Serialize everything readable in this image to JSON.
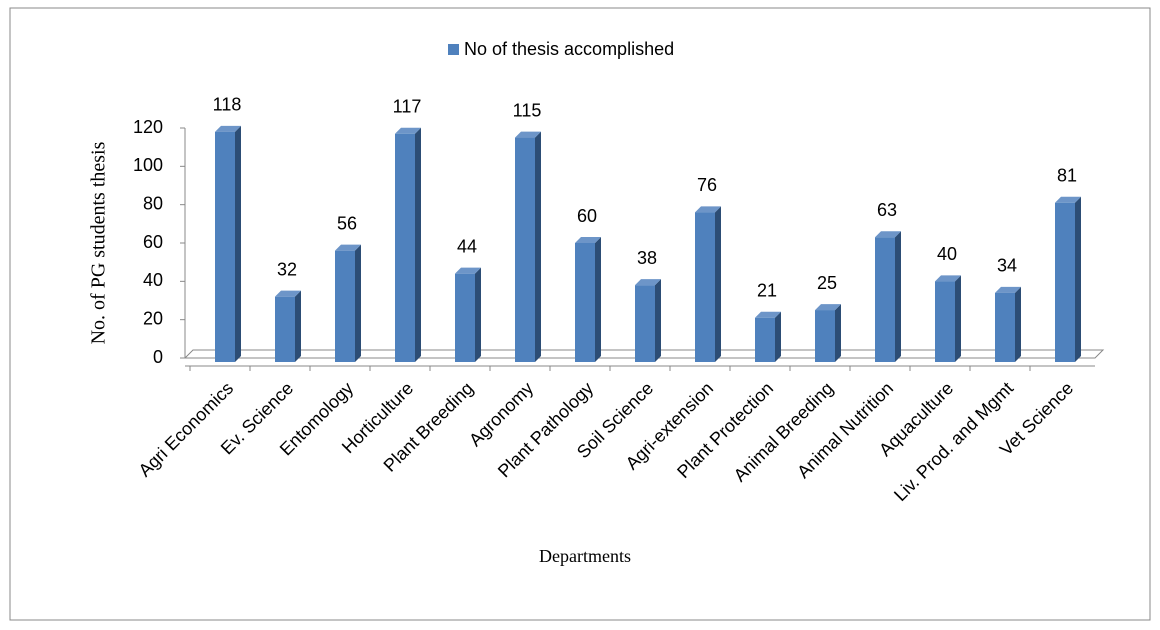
{
  "chart_data": {
    "type": "bar",
    "x_label": "Departments",
    "y_label": "No. of PG students thesis",
    "categories": [
      "Agri Economics",
      "Ev. Science",
      "Entomology",
      "Horticulture",
      "Plant Breeding",
      "Agronomy",
      "Plant Pathology",
      "Soil Science",
      "Agri-extension",
      "Plant Protection",
      "Animal Breeding",
      "Animal Nutrition",
      "Aquaculture",
      "Liv. Prod. and Mgmt",
      "Vet Science"
    ],
    "series": [
      {
        "name": "No of thesis accomplished",
        "color": "#4f81bd",
        "values": [
          118,
          32,
          56,
          117,
          44,
          115,
          60,
          38,
          76,
          21,
          25,
          63,
          40,
          34,
          81
        ]
      }
    ],
    "ylim": [
      0,
      120
    ],
    "yticks": [
      0,
      20,
      40,
      60,
      80,
      100,
      120
    ],
    "grid": false,
    "legend": "top"
  }
}
